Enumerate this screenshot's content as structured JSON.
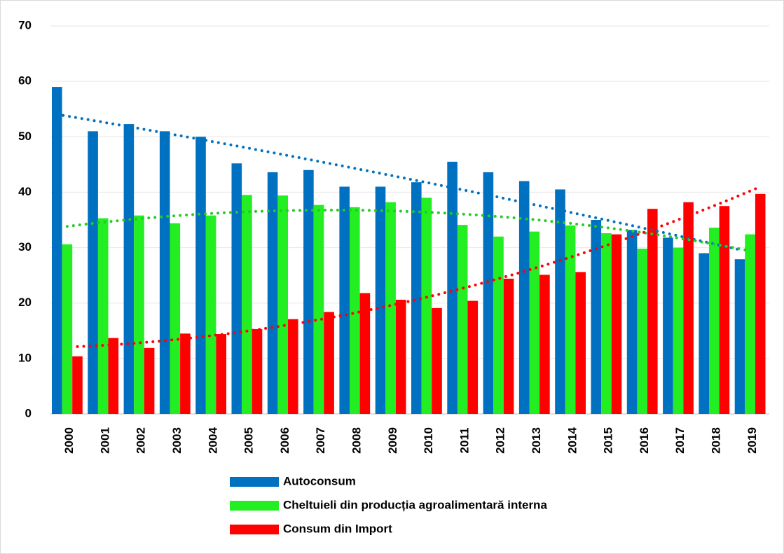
{
  "chart_data": {
    "type": "bar",
    "categories": [
      "2000",
      "2001",
      "2002",
      "2003",
      "2004",
      "2005",
      "2006",
      "2007",
      "2008",
      "2009",
      "2010",
      "2011",
      "2012",
      "2013",
      "2014",
      "2015",
      "2016",
      "2017",
      "2018",
      "2019"
    ],
    "series": [
      {
        "name": "Autoconsum",
        "color": "#0070c0",
        "values": [
          59.0,
          51.0,
          52.3,
          51.0,
          50.0,
          45.2,
          43.6,
          44.0,
          41.0,
          41.0,
          41.8,
          45.5,
          43.6,
          42.0,
          40.5,
          35.0,
          33.2,
          31.8,
          29.0,
          27.9
        ]
      },
      {
        "name": "Cheltuieli din producția agroalimentară interna",
        "color": "#22ee22",
        "values": [
          30.6,
          35.3,
          35.8,
          34.4,
          35.8,
          39.5,
          39.4,
          37.7,
          37.3,
          38.2,
          39.0,
          34.1,
          32.0,
          32.9,
          34.0,
          32.6,
          29.8,
          30.0,
          33.6,
          32.4
        ]
      },
      {
        "name": "Consum din Import",
        "color": "#ff0000",
        "values": [
          10.4,
          13.7,
          11.9,
          14.5,
          14.4,
          15.3,
          17.1,
          18.4,
          21.8,
          20.6,
          19.1,
          20.4,
          24.4,
          25.1,
          25.6,
          32.4,
          37.0,
          38.2,
          37.5,
          39.7
        ]
      }
    ],
    "ylim": [
      0,
      70
    ],
    "yticks": [
      0,
      10,
      20,
      30,
      40,
      50,
      60,
      70
    ],
    "grid": true,
    "trendline": true
  }
}
